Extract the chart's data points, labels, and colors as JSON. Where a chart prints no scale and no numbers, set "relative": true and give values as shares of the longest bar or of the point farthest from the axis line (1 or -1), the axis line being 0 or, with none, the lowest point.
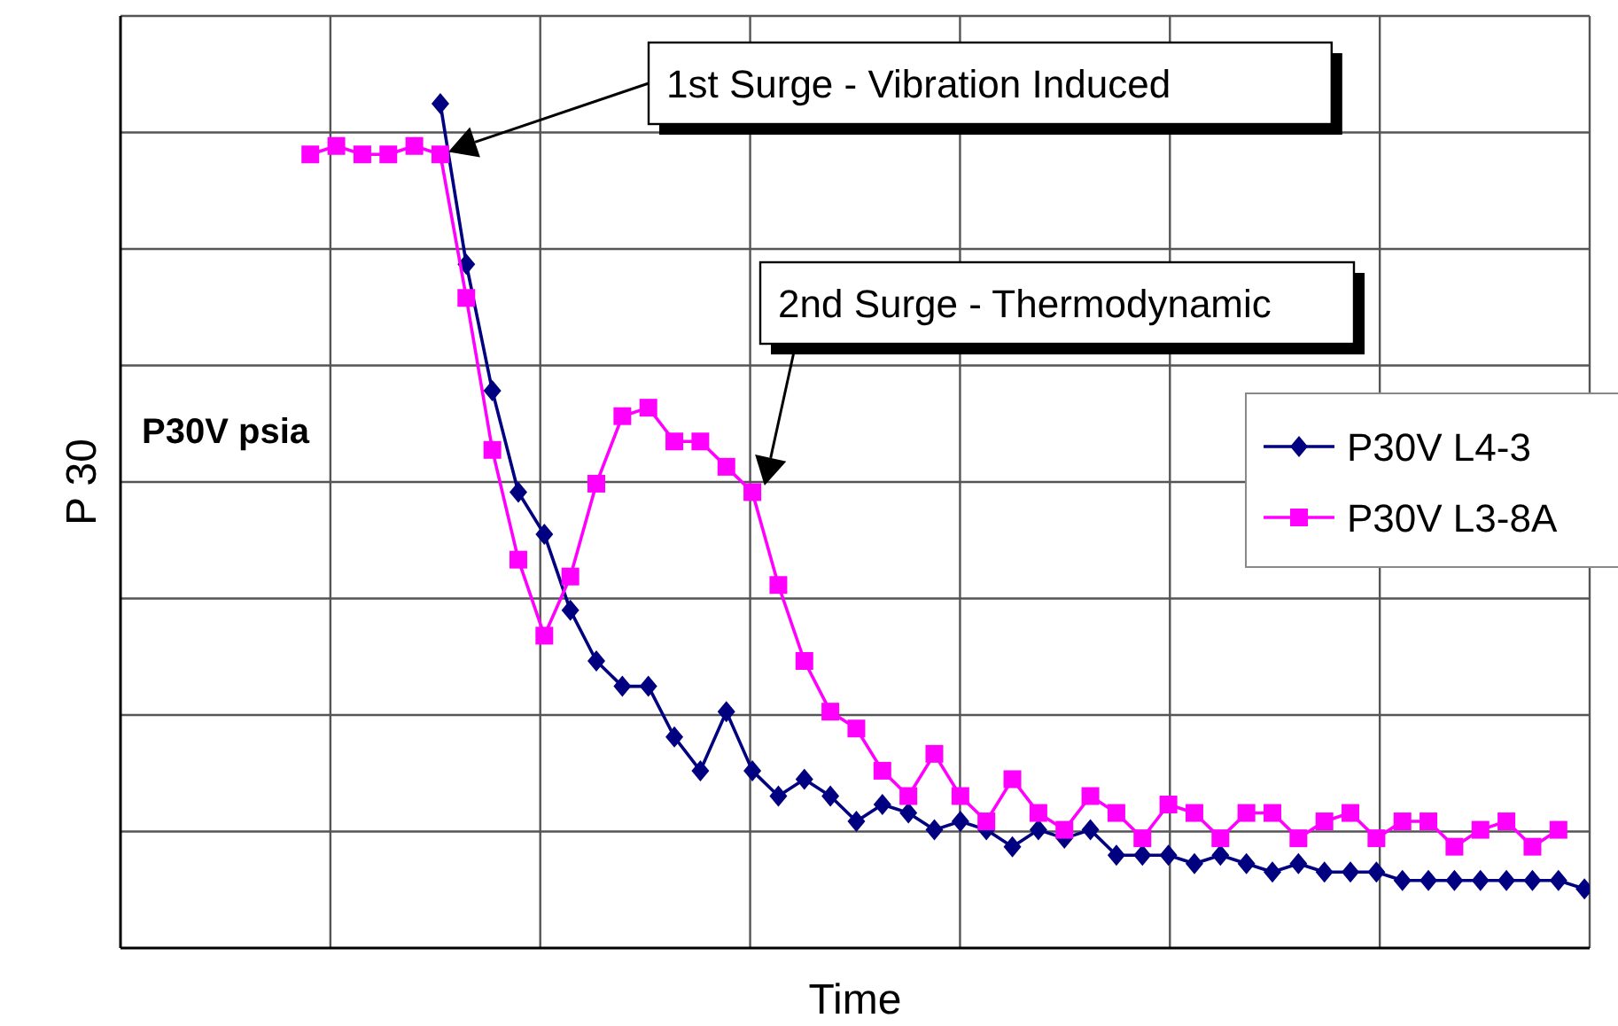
{
  "chart_data": {
    "type": "line",
    "relative": true,
    "xlabel": "Time",
    "ylabel": "P 30",
    "categories": [
      null,
      null,
      null,
      null,
      null,
      null,
      null,
      null,
      null,
      null,
      null,
      null,
      null,
      null,
      null,
      null,
      null,
      null,
      null,
      null,
      null,
      null,
      null,
      null,
      null,
      null,
      null,
      null,
      null,
      null,
      null,
      null,
      null,
      null,
      null,
      null,
      null,
      null,
      null,
      null,
      null,
      null,
      null,
      null,
      null,
      null,
      null,
      null,
      null,
      null
    ],
    "grid": true,
    "legend": "right",
    "series": [
      {
        "name": "P30V L4-3",
        "color": "#000080",
        "marker": "diamond",
        "values": [
          null,
          null,
          null,
          null,
          null,
          1,
          0.81,
          0.66,
          0.54,
          0.49,
          0.4,
          0.34,
          0.31,
          0.31,
          0.25,
          0.21,
          0.28,
          0.21,
          0.18,
          0.2,
          0.18,
          0.15,
          0.17,
          0.16,
          0.14,
          0.15,
          0.14,
          0.12,
          0.14,
          0.13,
          0.14,
          0.11,
          0.11,
          0.11,
          0.1,
          0.11,
          0.1,
          0.09,
          0.1,
          0.09,
          0.09,
          0.09,
          0.08,
          0.08,
          0.08,
          0.08,
          0.08,
          0.08,
          0.08,
          0.07
        ]
      },
      {
        "name": "P30V L3-8A",
        "color": "#ff00ff",
        "marker": "square",
        "values": [
          0.94,
          0.95,
          0.94,
          0.94,
          0.95,
          0.94,
          0.77,
          0.59,
          0.46,
          0.37,
          0.44,
          0.55,
          0.63,
          0.64,
          0.6,
          0.6,
          0.57,
          0.54,
          0.43,
          0.34,
          0.28,
          0.26,
          0.21,
          0.18,
          0.23,
          0.18,
          0.15,
          0.2,
          0.16,
          0.14,
          0.18,
          0.16,
          0.13,
          0.17,
          0.16,
          0.13,
          0.16,
          0.16,
          0.13,
          0.15,
          0.16,
          0.13,
          0.15,
          0.15,
          0.12,
          0.14,
          0.15,
          0.12,
          0.14,
          null
        ]
      }
    ],
    "annotations": [
      "1st Surge - Vibration Induced",
      "2nd Surge - Thermodynamic",
      "P30V psia"
    ]
  }
}
